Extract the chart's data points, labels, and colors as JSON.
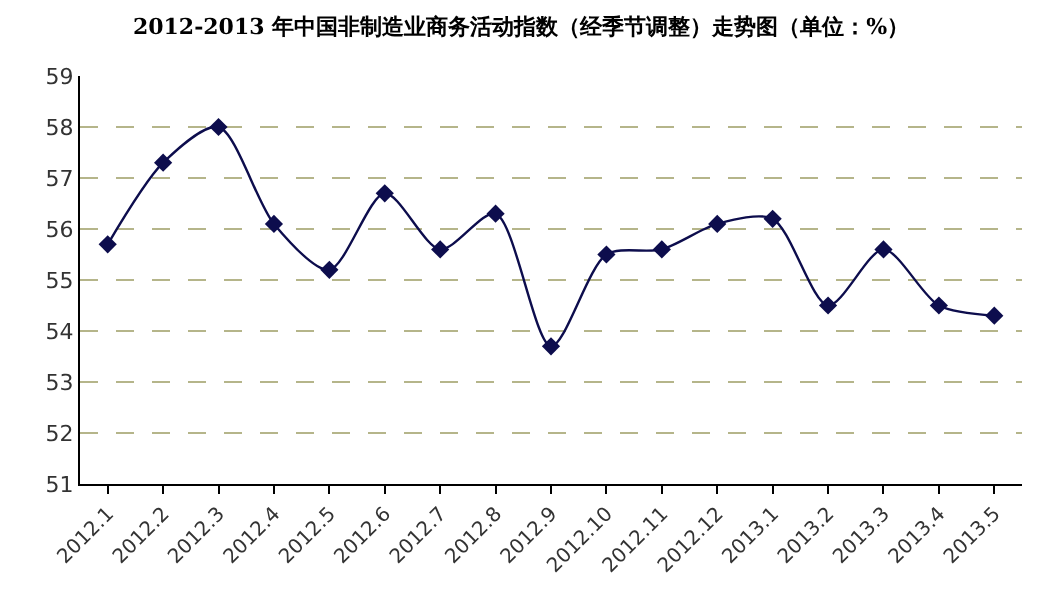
{
  "chart_data": {
    "type": "line",
    "title": "2012-2013 年中国非制造业商务活动指数（经季节调整）走势图（单位：%）",
    "categories": [
      "2012.1",
      "2012.2",
      "2012.3",
      "2012.4",
      "2012.5",
      "2012.6",
      "2012.7",
      "2012.8",
      "2012.9",
      "2012.10",
      "2012.11",
      "2012.12",
      "2013.1",
      "2013.2",
      "2013.3",
      "2013.4",
      "2013.5"
    ],
    "series": [
      {
        "color": "#0d0d4d",
        "values": [
          55.7,
          57.3,
          58.0,
          56.1,
          55.2,
          56.7,
          55.6,
          56.3,
          53.7,
          55.5,
          55.6,
          56.1,
          56.2,
          54.5,
          55.6,
          54.5,
          54.3
        ]
      }
    ],
    "ylim": [
      51,
      59
    ],
    "yticks": [
      51,
      52,
      53,
      54,
      55,
      56,
      57,
      58,
      59
    ],
    "grid": "y",
    "marker": "diamond",
    "line_style": "solid"
  }
}
